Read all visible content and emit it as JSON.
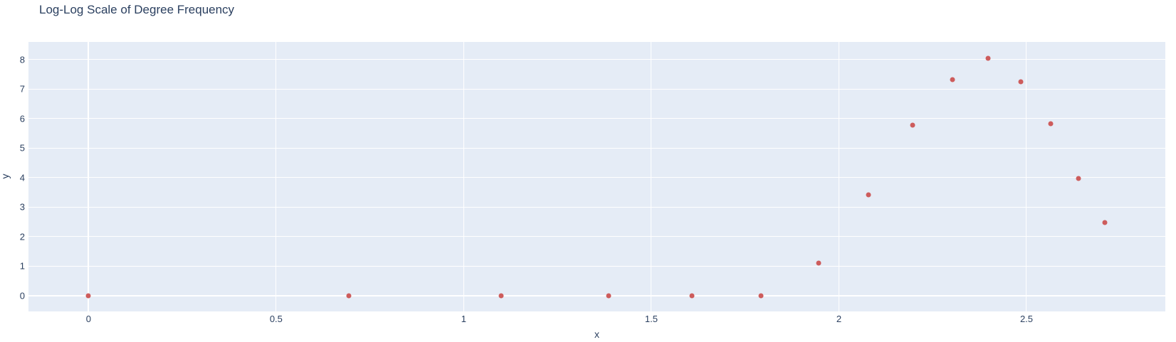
{
  "title": "Log-Log Scale of Degree Frequency",
  "chart_data": {
    "type": "scatter",
    "title": "Log-Log Scale of Degree Frequency",
    "xlabel": "x",
    "ylabel": "y",
    "x": [
      0,
      0.693,
      1.099,
      1.386,
      1.609,
      1.792,
      1.946,
      2.079,
      2.197,
      2.303,
      2.398,
      2.485,
      2.565,
      2.639,
      2.708
    ],
    "y": [
      0,
      0,
      0,
      0,
      0,
      0,
      1.12,
      3.42,
      5.78,
      7.33,
      8.04,
      7.25,
      5.82,
      3.97,
      2.49
    ],
    "xlim": [
      -0.16,
      2.87
    ],
    "ylim": [
      -0.53,
      8.6
    ],
    "xticks": [
      0,
      0.5,
      1,
      1.5,
      2,
      2.5
    ],
    "xtick_labels": [
      "0",
      "0.5",
      "1",
      "1.5",
      "2",
      "2.5"
    ],
    "yticks": [
      0,
      1,
      2,
      3,
      4,
      5,
      6,
      7,
      8
    ],
    "ytick_labels": [
      "0",
      "1",
      "2",
      "3",
      "4",
      "5",
      "6",
      "7",
      "8"
    ],
    "grid": true,
    "legend": false,
    "marker_color": "#CD5C5C",
    "plot_bg_color": "#E5ECF6",
    "grid_color": "#FFFFFF",
    "text_color": "#2a3f5f"
  }
}
